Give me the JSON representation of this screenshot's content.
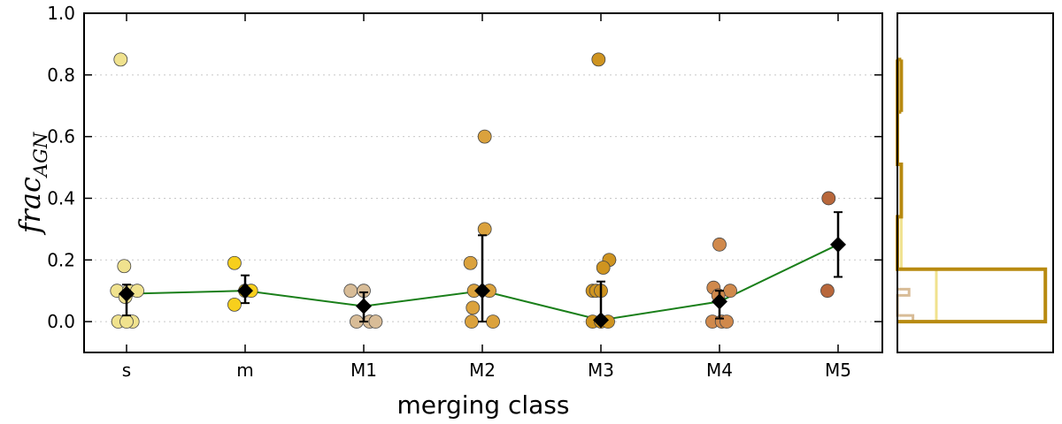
{
  "chart_data": [
    {
      "type": "scatter",
      "xlabel": "merging class",
      "ylabel": "frac",
      "ylabel_subscript": "AGN",
      "categories": [
        "s",
        "m",
        "M1",
        "M2",
        "M3",
        "M4",
        "M5"
      ],
      "ylim": [
        -0.1,
        1.0
      ],
      "yticks": [
        0.0,
        0.2,
        0.4,
        0.6,
        0.8,
        1.0
      ],
      "ytick_labels": [
        "0.0",
        "0.2",
        "0.4",
        "0.6",
        "0.8",
        "1.0"
      ],
      "grid": "horizontal dotted",
      "colors": {
        "s": "#f0e28e",
        "m": "#f7cf1d",
        "M1": "#d8bc97",
        "M2": "#dba23d",
        "M3": "#cf9420",
        "M4": "#d0894c",
        "M5": "#b8673b",
        "median_line": "#1a7f1a",
        "median_marker": "#000000"
      },
      "points": {
        "s": [
          [
            -0.05,
            0.85
          ],
          [
            -0.02,
            0.18
          ],
          [
            -0.08,
            0.1
          ],
          [
            0.02,
            0.1
          ],
          [
            0.09,
            0.1
          ],
          [
            -0.01,
            0.08
          ],
          [
            -0.07,
            0.0
          ],
          [
            0.05,
            0.0
          ],
          [
            0.0,
            0.0
          ]
        ],
        "m": [
          [
            -0.09,
            0.19
          ],
          [
            -0.09,
            0.055
          ],
          [
            0.0,
            0.1
          ],
          [
            0.05,
            0.1
          ]
        ],
        "M1": [
          [
            -0.11,
            0.1
          ],
          [
            0.0,
            0.1
          ],
          [
            -0.06,
            0.0
          ],
          [
            0.05,
            0.0
          ],
          [
            0.1,
            0.0
          ]
        ],
        "M2": [
          [
            0.02,
            0.6
          ],
          [
            0.02,
            0.3
          ],
          [
            -0.1,
            0.19
          ],
          [
            -0.07,
            0.1
          ],
          [
            0.06,
            0.1
          ],
          [
            -0.08,
            0.045
          ],
          [
            -0.09,
            0.0
          ],
          [
            0.09,
            0.0
          ]
        ],
        "M3": [
          [
            -0.02,
            0.85
          ],
          [
            0.07,
            0.2
          ],
          [
            0.02,
            0.175
          ],
          [
            -0.07,
            0.1
          ],
          [
            -0.04,
            0.1
          ],
          [
            0.0,
            0.1
          ],
          [
            -0.07,
            0.0
          ],
          [
            0.0,
            0.0
          ],
          [
            0.06,
            0.0
          ]
        ],
        "M4": [
          [
            0.0,
            0.25
          ],
          [
            -0.05,
            0.11
          ],
          [
            0.09,
            0.1
          ],
          [
            -0.01,
            0.085
          ],
          [
            -0.06,
            0.0
          ],
          [
            0.02,
            0.0
          ],
          [
            0.06,
            0.0
          ]
        ],
        "M5": [
          [
            -0.08,
            0.4
          ],
          [
            -0.09,
            0.1
          ]
        ]
      },
      "medians": [
        0.09,
        0.1,
        0.05,
        0.1,
        0.005,
        0.065,
        0.25
      ],
      "errors": [
        [
          0.02,
          0.12
        ],
        [
          0.06,
          0.15
        ],
        [
          0.0,
          0.095
        ],
        [
          0.0,
          0.28
        ],
        [
          0.0,
          0.13
        ],
        [
          0.01,
          0.1
        ],
        [
          0.145,
          0.355
        ]
      ]
    },
    {
      "type": "histogram",
      "orientation": "horizontal",
      "ylim": [
        -0.1,
        1.0
      ],
      "bins": [
        0.0,
        0.17,
        0.34,
        0.51,
        0.68,
        0.85
      ],
      "total_counts": [
        38,
        0,
        1,
        0,
        0,
        1
      ],
      "total_color": "#b88a10",
      "series": [
        {
          "name": "s",
          "color": "#f0e28e",
          "bin_edges": [
            0.0,
            0.17,
            0.34
          ],
          "counts": [
            10,
            1
          ]
        },
        {
          "name": "M1",
          "color": "#d8bc97",
          "bin_edges": [
            0.0,
            0.02,
            0.085,
            0.105
          ],
          "counts": [
            4,
            0,
            3
          ]
        }
      ],
      "xlim": [
        0,
        40
      ]
    }
  ]
}
